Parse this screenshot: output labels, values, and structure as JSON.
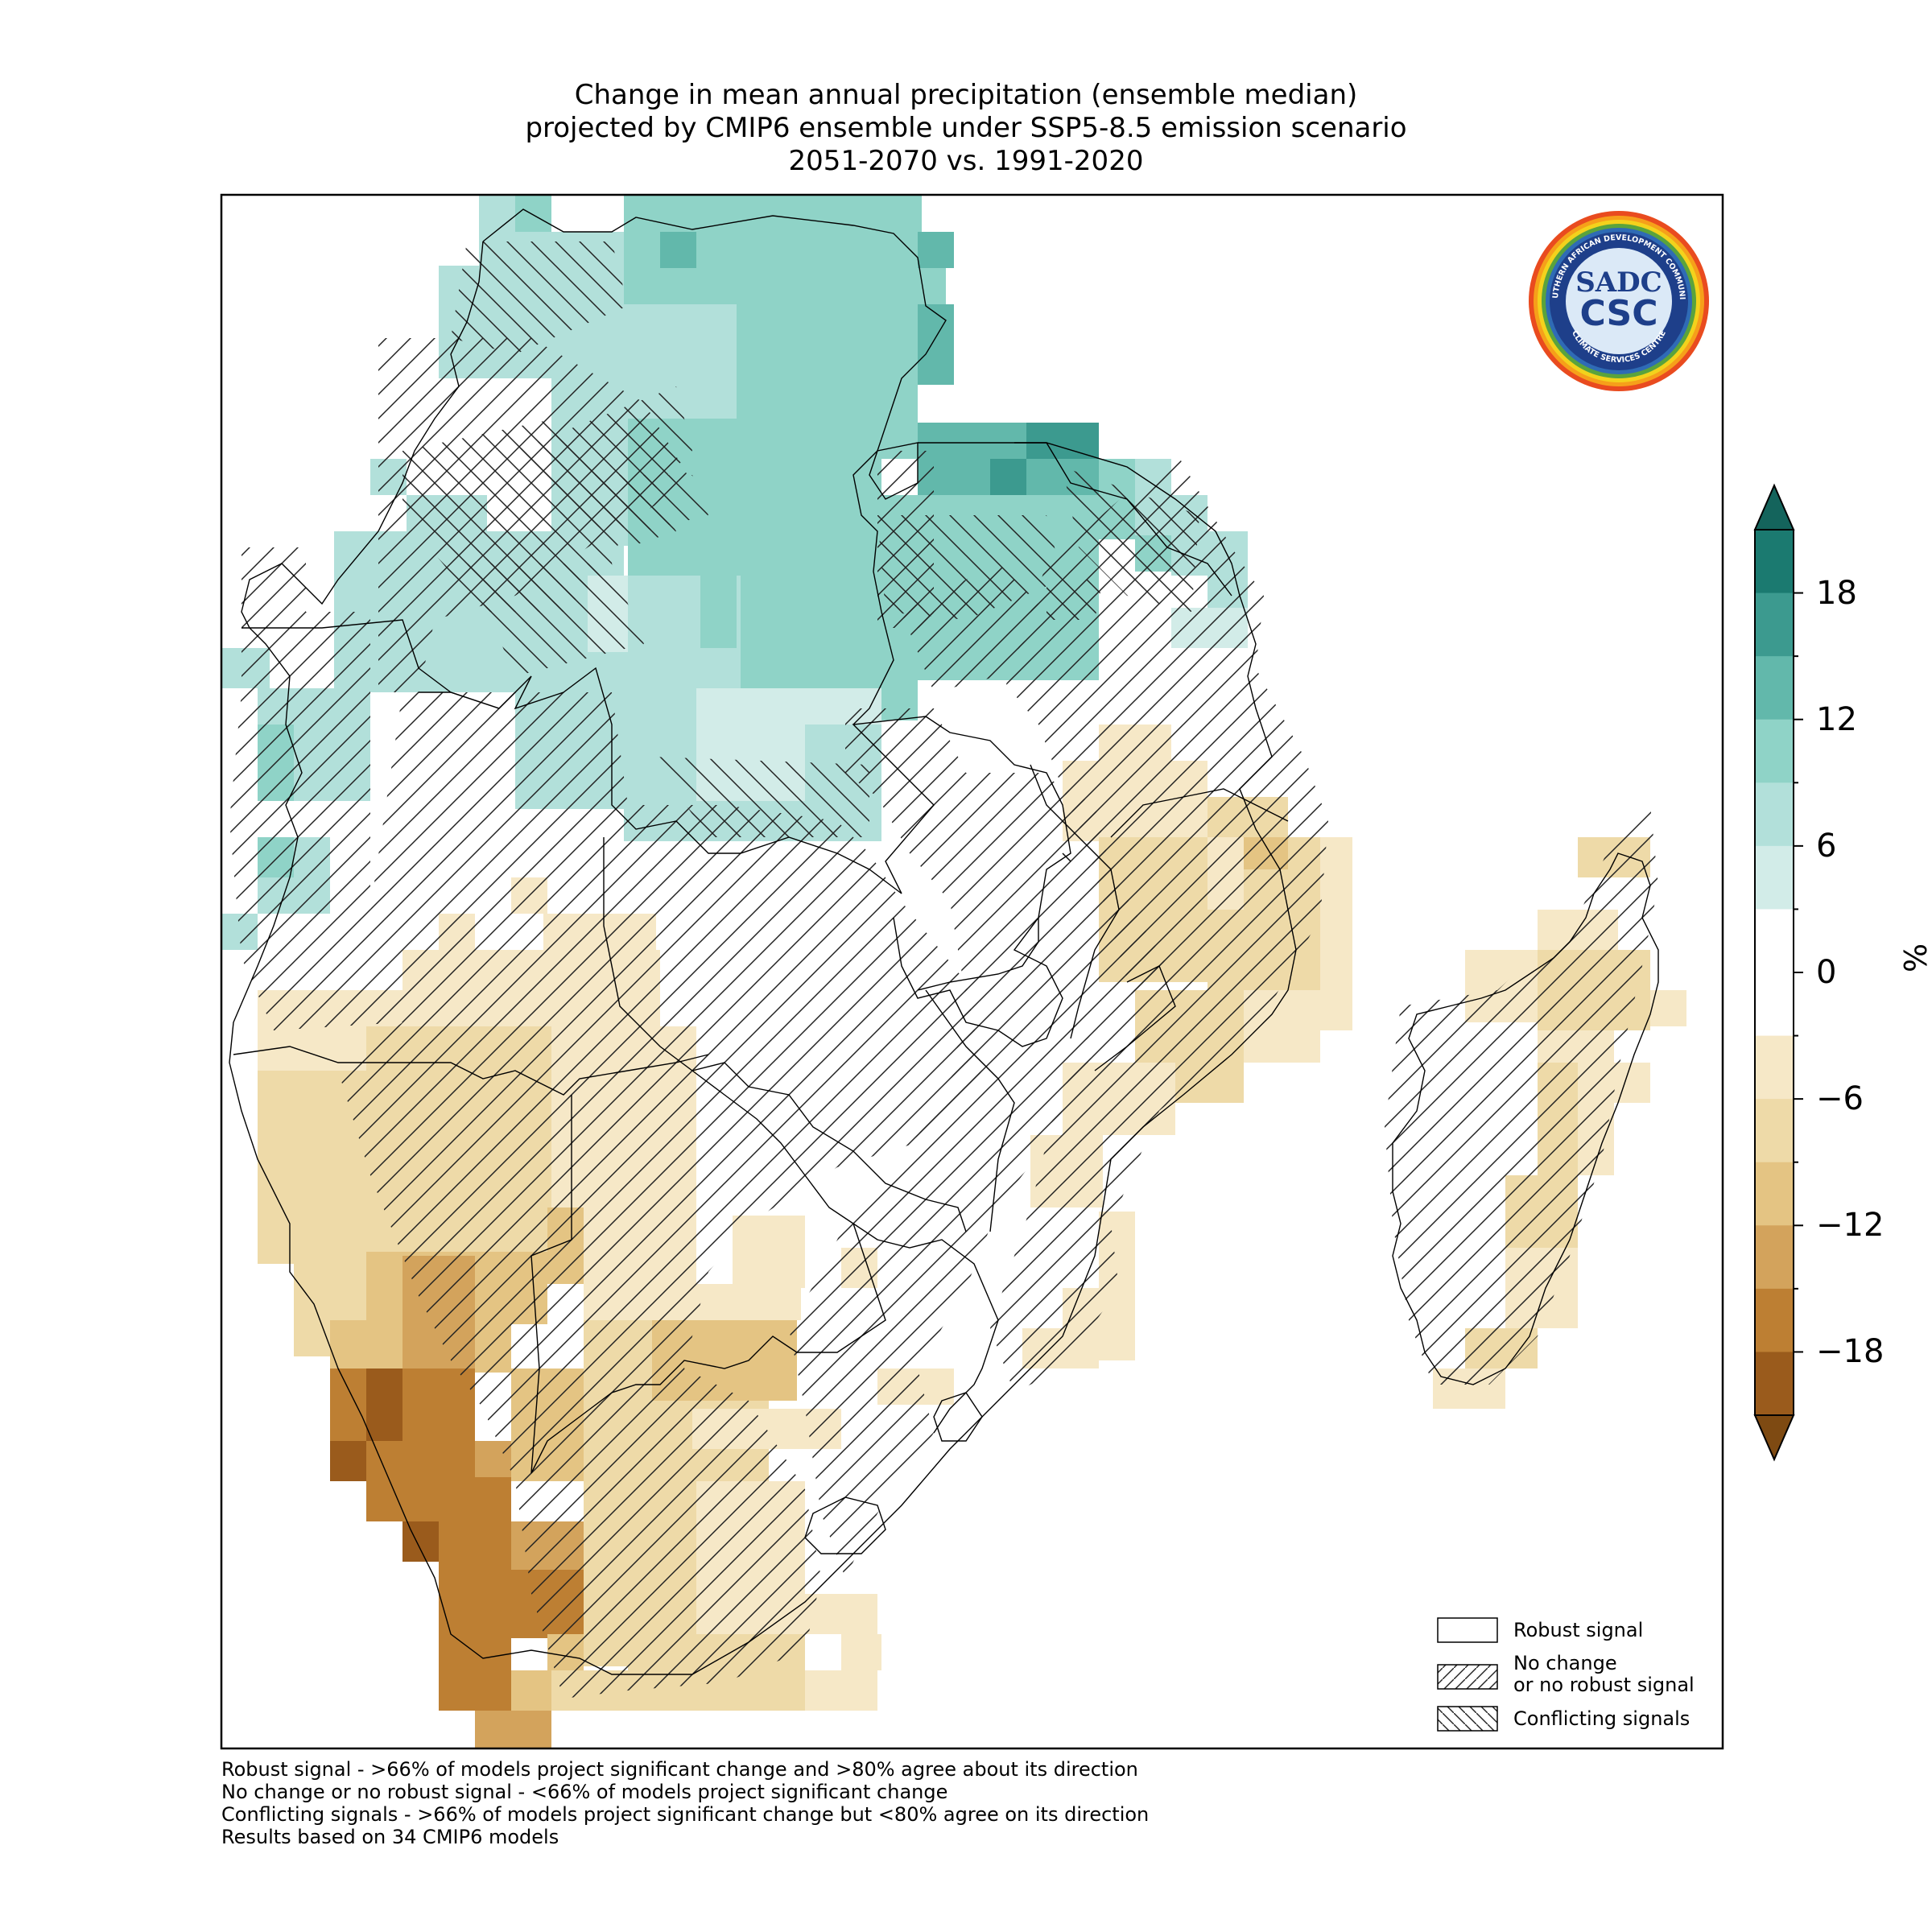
{
  "title": {
    "line1": "Change in mean annual precipitation (ensemble median)",
    "line2": "projected by CMIP6 ensemble under SSP5-8.5 emission scenario",
    "line3": "2051-2070 vs. 1991-2020"
  },
  "colorbar": {
    "unit": "%",
    "ticks": [
      "18",
      "12",
      "6",
      "0",
      "−6",
      "−12",
      "−18"
    ],
    "colors_positive": [
      "#d2ece8",
      "#b2e0da",
      "#8fd3c7",
      "#62b8ab",
      "#3c9a8f",
      "#1b7a70"
    ],
    "colors_negative": [
      "#f6e8c7",
      "#eedaa8",
      "#e4c483",
      "#d3a35c",
      "#bd7f33",
      "#9a5b1c"
    ]
  },
  "legend": {
    "items": [
      {
        "label": "Robust signal",
        "pattern": "none"
      },
      {
        "label_line1": "No change",
        "label_line2": "or no robust signal",
        "pattern": "forward-hatch"
      },
      {
        "label": "Conflicting signals",
        "pattern": "back-hatch"
      }
    ]
  },
  "notes": [
    "Robust signal - >66% of models project significant change and >80% agree about its direction",
    "No change or no robust signal - <66% of models project significant change",
    "Conflicting signals - >66% of models project significant change but <80% agree on its direction",
    "Results based on 34 CMIP6 models"
  ],
  "logo": {
    "top_text": "SOUTHERN AFRICAN DEVELOPMENT COMMUNITY",
    "bottom_text": "CLIMATE SERVICES CENTRE",
    "mark1": "SADC",
    "mark2": "CSC"
  }
}
